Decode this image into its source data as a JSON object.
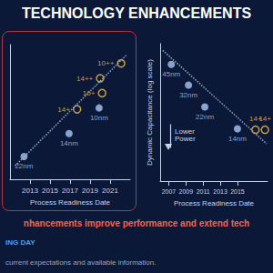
{
  "slide": {
    "title": "TECHNOLOGY ENHANCEMENTS",
    "caption": "nhancements improve performance and extend tech",
    "footer": [
      "ING DAY",
      "current expectations and available information."
    ]
  },
  "chart_data": [
    {
      "type": "scatter",
      "x_label": "Process Readiness Date",
      "xlim": [
        2011,
        2023
      ],
      "xticks": [
        2013,
        2015,
        2017,
        2019,
        2021
      ],
      "ylim": [
        0,
        10
      ],
      "tick_labels": "x",
      "grid": false,
      "series": [
        {
          "type": "line",
          "line_style": "dotted",
          "color": "#8fa6c8",
          "x": [
            2011.5,
            2022.6
          ],
          "values": [
            1.0,
            9.2
          ]
        },
        {
          "type": "scatter",
          "marker": "circle",
          "color": "#a8c8f2",
          "x": [
            2012.4,
            2016.9,
            2019.9
          ],
          "values": [
            1.7,
            3.4,
            5.3
          ],
          "labels": [
            "22nm",
            "14nm",
            "10nm"
          ]
        },
        {
          "type": "scatter",
          "marker": "open_circle",
          "color": "#f2c14e",
          "x": [
            2017.7,
            2020.0,
            2020.2,
            2022.1
          ],
          "values": [
            5.2,
            7.5,
            6.4,
            8.6
          ],
          "labels": [
            "14+",
            "14++",
            "10+",
            "10++"
          ]
        }
      ]
    },
    {
      "type": "scatter",
      "x_label": "Process Readiness Date",
      "y_label": "Dynamic Capacitance (log scale)",
      "annotation": "Lower Power",
      "log": "y",
      "xlim": [
        2006,
        2018.5
      ],
      "xticks": [
        2007,
        2009,
        2011,
        2013,
        2015
      ],
      "ylim": [
        1,
        100
      ],
      "tick_labels": "x",
      "grid": false,
      "series": [
        {
          "type": "line",
          "line_style": "dotted",
          "color": "#8fa6c8",
          "x": [
            2006.3,
            2018.4
          ],
          "values": [
            80,
            3.5
          ]
        },
        {
          "type": "scatter",
          "marker": "circle",
          "color": "#a8c8f2",
          "x": [
            2007.3,
            2009.3,
            2011.2,
            2015.0
          ],
          "values": [
            50,
            25,
            12,
            5.8
          ],
          "labels": [
            "45nm",
            "32nm",
            "22nm",
            "14nm"
          ]
        },
        {
          "type": "scatter",
          "marker": "open_circle",
          "color": "#f2c14e",
          "x": [
            2017.1,
            2018.2
          ],
          "values": [
            5.6,
            5.6
          ],
          "labels": [
            "14+",
            "14+"
          ]
        }
      ]
    }
  ]
}
